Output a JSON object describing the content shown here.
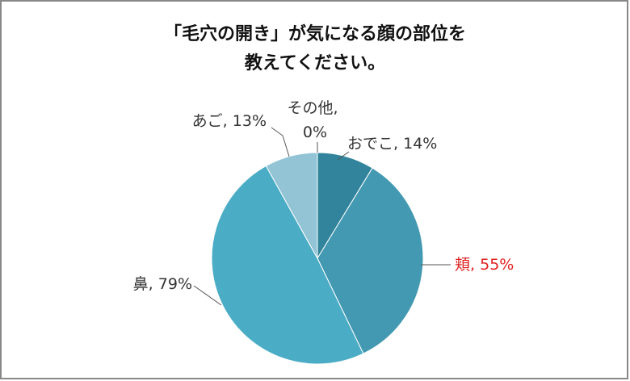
{
  "chart_data": {
    "type": "pie",
    "title": [
      "「毛穴の開き」が気になる顔の部位を",
      "教えてください。"
    ],
    "categories": [
      "おでこ",
      "頬",
      "鼻",
      "あご",
      "その他"
    ],
    "values": [
      14,
      55,
      79,
      13,
      0
    ],
    "value_labels": [
      "14%",
      "55%",
      "79%",
      "13%",
      "0%"
    ],
    "label_separator": ", ",
    "colors": [
      "#31849b",
      "#4399b2",
      "#4bacc6",
      "#92c4d6",
      "#b7dee8"
    ],
    "label_colors": [
      "#333333",
      "#e02020",
      "#333333",
      "#333333",
      "#333333"
    ]
  }
}
